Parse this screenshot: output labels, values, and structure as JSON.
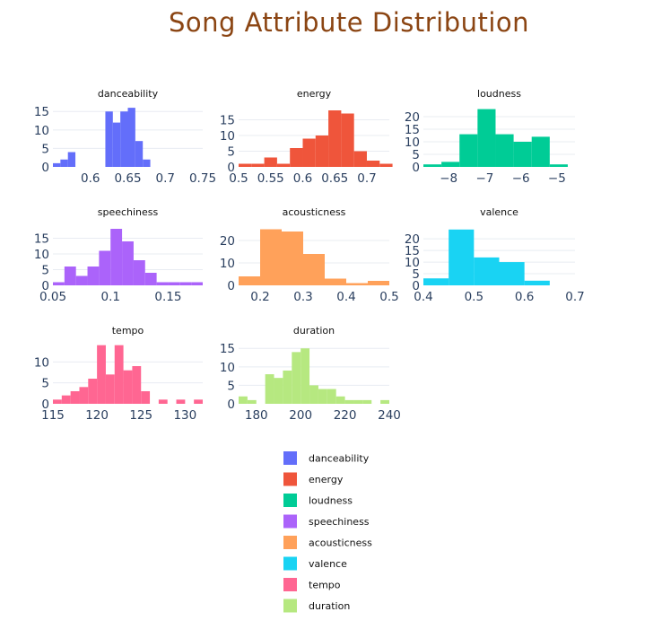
{
  "page": {
    "title": "Song Attribute Distribution",
    "title_color": "#8b4513"
  },
  "chart_data": [
    {
      "type": "bar",
      "title": "danceability",
      "color": "#636efa",
      "x_range": [
        0.55,
        0.75
      ],
      "y_range": [
        0,
        17
      ],
      "x_ticks": [
        0.6,
        0.65,
        0.7,
        0.75
      ],
      "x_tick_labels": [
        "0.6",
        "0.65",
        "0.7",
        "0.75"
      ],
      "y_ticks": [
        0,
        5,
        10,
        15
      ],
      "y_tick_labels": [
        "0",
        "5",
        "10",
        "15"
      ],
      "bin_start": 0.55,
      "bin_width": 0.01,
      "values": [
        1,
        2,
        4,
        0,
        0,
        0,
        0,
        15,
        12,
        15,
        16,
        7,
        2
      ]
    },
    {
      "type": "bar",
      "title": "energy",
      "color": "#ef553b",
      "x_range": [
        0.5,
        0.735
      ],
      "y_range": [
        0,
        20
      ],
      "x_ticks": [
        0.5,
        0.55,
        0.6,
        0.65,
        0.7
      ],
      "x_tick_labels": [
        "0.5",
        "0.55",
        "0.6",
        "0.65",
        "0.7"
      ],
      "y_ticks": [
        0,
        5,
        10,
        15
      ],
      "y_tick_labels": [
        "0",
        "5",
        "10",
        "15"
      ],
      "bin_start": 0.5,
      "bin_width": 0.02,
      "values": [
        1,
        1,
        3,
        1,
        6,
        9,
        10,
        18,
        17,
        5,
        2,
        1
      ]
    },
    {
      "type": "bar",
      "title": "loudness",
      "color": "#00cc96",
      "x_range": [
        -8.7,
        -4.5
      ],
      "y_range": [
        0,
        25
      ],
      "x_ticks": [
        -8,
        -7,
        -6,
        -5
      ],
      "x_tick_labels": [
        "−8",
        "−7",
        "−6",
        "−5"
      ],
      "y_ticks": [
        0,
        5,
        10,
        15,
        20
      ],
      "y_tick_labels": [
        "0",
        "5",
        "10",
        "15",
        "20"
      ],
      "bin_start": -8.7,
      "bin_width": 0.5,
      "values": [
        1,
        2,
        13,
        23,
        13,
        10,
        12,
        1
      ]
    },
    {
      "type": "bar",
      "title": "speechiness",
      "color": "#ab63fa",
      "x_range": [
        0.05,
        0.18
      ],
      "y_range": [
        0,
        20
      ],
      "x_ticks": [
        0.05,
        0.1,
        0.15
      ],
      "x_tick_labels": [
        "0.05",
        "0.1",
        "0.15"
      ],
      "y_ticks": [
        0,
        5,
        10,
        15
      ],
      "y_tick_labels": [
        "0",
        "5",
        "10",
        "15"
      ],
      "bin_start": 0.05,
      "bin_width": 0.01,
      "values": [
        1,
        6,
        3,
        6,
        11,
        18,
        14,
        8,
        4,
        1,
        1,
        1,
        1
      ]
    },
    {
      "type": "bar",
      "title": "acousticness",
      "color": "#ffa15a",
      "x_range": [
        0.15,
        0.5
      ],
      "y_range": [
        0,
        28
      ],
      "x_ticks": [
        0.2,
        0.3,
        0.4,
        0.5
      ],
      "x_tick_labels": [
        "0.2",
        "0.3",
        "0.4",
        "0.5"
      ],
      "y_ticks": [
        0,
        10,
        20
      ],
      "y_tick_labels": [
        "0",
        "10",
        "20"
      ],
      "bin_start": 0.15,
      "bin_width": 0.05,
      "values": [
        4,
        25,
        24,
        14,
        3,
        1,
        2
      ]
    },
    {
      "type": "bar",
      "title": "valence",
      "color": "#19d3f3",
      "x_range": [
        0.4,
        0.7
      ],
      "y_range": [
        0,
        27
      ],
      "x_ticks": [
        0.4,
        0.5,
        0.6,
        0.7
      ],
      "x_tick_labels": [
        "0.4",
        "0.5",
        "0.6",
        "0.7"
      ],
      "y_ticks": [
        0,
        5,
        10,
        15,
        20
      ],
      "y_tick_labels": [
        "0",
        "5",
        "10",
        "15",
        "20"
      ],
      "bin_start": 0.4,
      "bin_width": 0.05,
      "values": [
        3,
        24,
        12,
        10,
        2
      ]
    },
    {
      "type": "bar",
      "title": "tempo",
      "color": "#ff6692",
      "x_range": [
        115,
        132
      ],
      "y_range": [
        0,
        15
      ],
      "x_ticks": [
        115,
        120,
        125,
        130
      ],
      "x_tick_labels": [
        "115",
        "120",
        "125",
        "130"
      ],
      "y_ticks": [
        0,
        5,
        10
      ],
      "y_tick_labels": [
        "0",
        "5",
        "10"
      ],
      "bin_start": 115,
      "bin_width": 1,
      "values": [
        1,
        2,
        3,
        4,
        6,
        14,
        7,
        14,
        8,
        9,
        3,
        0,
        1,
        0,
        1,
        0,
        1
      ]
    },
    {
      "type": "bar",
      "title": "duration",
      "color": "#b6e880",
      "x_range": [
        172,
        240
      ],
      "y_range": [
        0,
        17
      ],
      "x_ticks": [
        180,
        200,
        220,
        240
      ],
      "x_tick_labels": [
        "180",
        "200",
        "220",
        "240"
      ],
      "y_ticks": [
        0,
        5,
        10,
        15
      ],
      "y_tick_labels": [
        "0",
        "5",
        "10",
        "15"
      ],
      "bin_start": 172,
      "bin_width": 4,
      "values": [
        2,
        1,
        0,
        8,
        7,
        9,
        14,
        15,
        5,
        4,
        4,
        2,
        1,
        1,
        1,
        0,
        1
      ]
    }
  ],
  "legend": [
    {
      "label": "danceability",
      "color": "#636efa"
    },
    {
      "label": "energy",
      "color": "#ef553b"
    },
    {
      "label": "loudness",
      "color": "#00cc96"
    },
    {
      "label": "speechiness",
      "color": "#ab63fa"
    },
    {
      "label": "acousticness",
      "color": "#ffa15a"
    },
    {
      "label": "valence",
      "color": "#19d3f3"
    },
    {
      "label": "tempo",
      "color": "#ff6692"
    },
    {
      "label": "duration",
      "color": "#b6e880"
    }
  ]
}
